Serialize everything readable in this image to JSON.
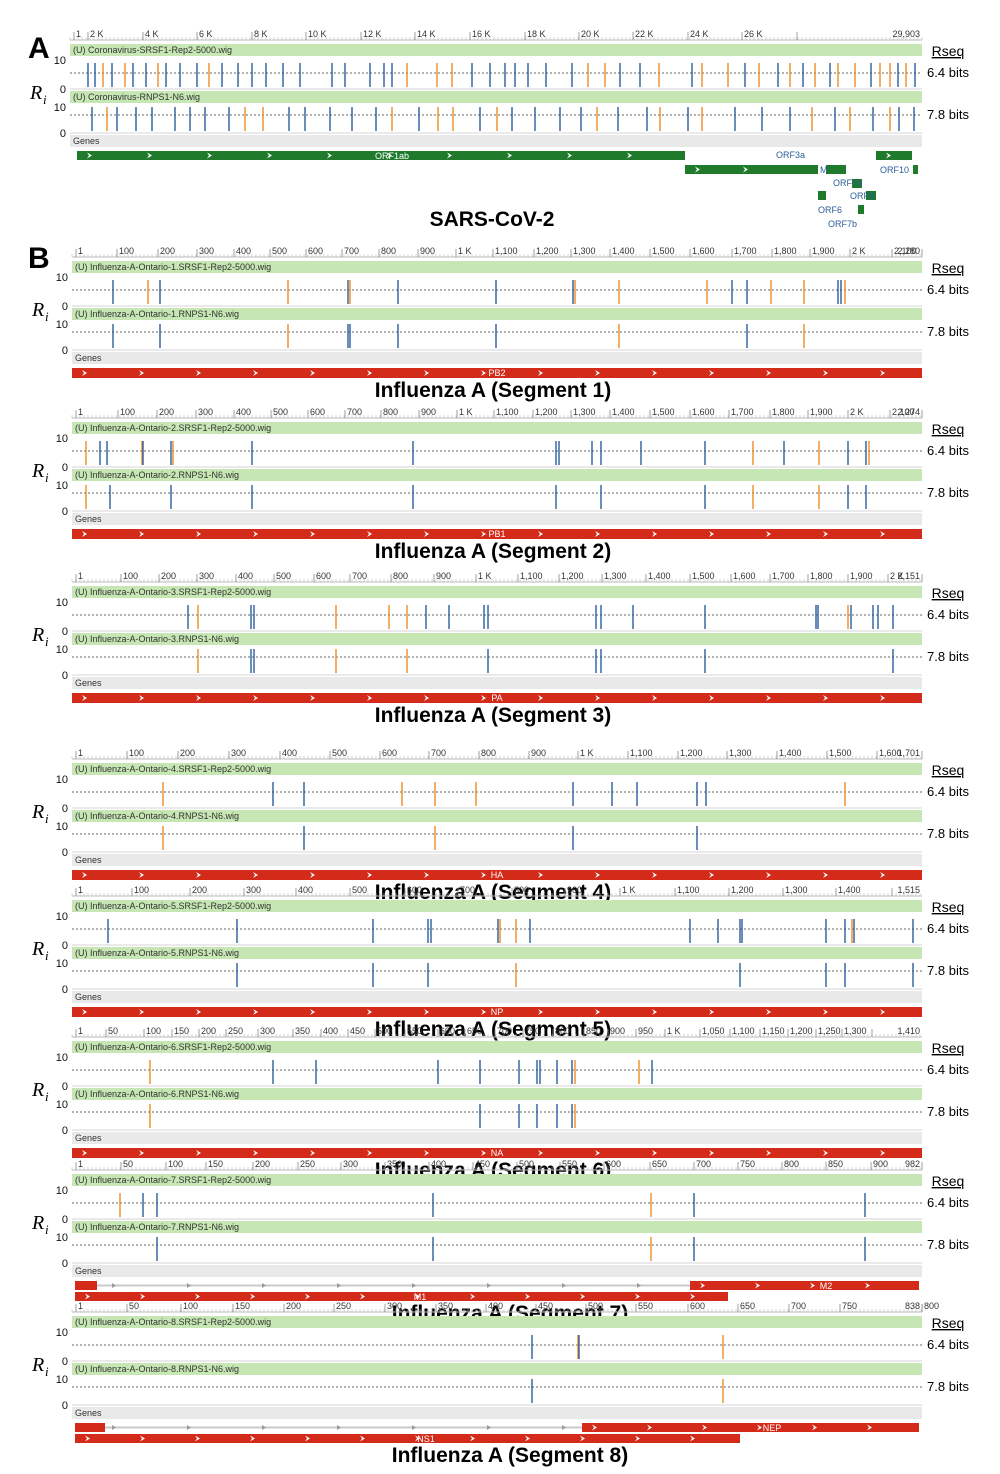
{
  "colors": {
    "track_bg": "#c6e6b3",
    "genes_bg": "#e9e9e9",
    "site_blue": "#2b5d9b",
    "site_orange": "#f08a24",
    "sars_gene": "#1f7a2c",
    "flu_gene": "#d42a1a"
  },
  "labels": {
    "ri_main": "R",
    "ri_sub": "i",
    "rseq_header": "Rseq",
    "rseq_srsf1": "6.4 bits",
    "rseq_rnps1": "7.8 bits",
    "axis_10": "10",
    "axis_0": "0",
    "genes_track": "Genes"
  },
  "panels": [
    {
      "letter": "A",
      "title": "SARS-CoV-2",
      "ticks": [
        "1",
        "2 K",
        "4 K",
        "6 K",
        "8 K",
        "10 K",
        "12 K",
        "14 K",
        "16 K",
        "18 K",
        "20 K",
        "22 K",
        "24 K",
        "26 K",
        "29,903"
      ],
      "track1": "(U) Coronavirus-SRSF1-Rep2-5000.wig",
      "track2": "(U) Coronavirus-RNPS1-N6.wig",
      "genes": [
        "ORF1ab",
        "ORF3a",
        "M",
        "ORF7a",
        "ORF8",
        "ORF6",
        "ORF7b",
        "ORF10"
      ]
    },
    {
      "letter": "B",
      "title": "Influenza A (Segment 1)",
      "ticks": [
        "1",
        "100",
        "200",
        "300",
        "400",
        "500",
        "600",
        "700",
        "800",
        "900",
        "1 K",
        "1,100",
        "1,200",
        "1,300",
        "1,400",
        "1,500",
        "1,600",
        "1,700",
        "1,800",
        "1,900",
        "2 K",
        "2,100",
        "2,280"
      ],
      "track1": "(U) Influenza-A-Ontario-1.SRSF1-Rep2-5000.wig",
      "track2": "(U) Influenza-A-Ontario-1.RNPS1-N6.wig",
      "genes": [
        "PB2"
      ]
    },
    {
      "letter": "",
      "title": "Influenza A (Segment 2)",
      "ticks": [
        "1",
        "100",
        "200",
        "300",
        "400",
        "500",
        "600",
        "700",
        "800",
        "900",
        "1 K",
        "1,100",
        "1,200",
        "1,300",
        "1,400",
        "1,500",
        "1,600",
        "1,700",
        "1,800",
        "1,900",
        "2 K",
        "2,100",
        "2,274"
      ],
      "track1": "(U) Influenza-A-Ontario-2.SRSF1-Rep2-5000.wig",
      "track2": "(U) Influenza-A-Ontario-2.RNPS1-N6.wig",
      "genes": [
        "PB1"
      ]
    },
    {
      "letter": "",
      "title": "Influenza A (Segment 3)",
      "ticks": [
        "1",
        "100",
        "200",
        "300",
        "400",
        "500",
        "600",
        "700",
        "800",
        "900",
        "1 K",
        "1,100",
        "1,200",
        "1,300",
        "1,400",
        "1,500",
        "1,600",
        "1,700",
        "1,800",
        "1,900",
        "2 K",
        "2,151"
      ],
      "track1": "(U) Influenza-A-Ontario-3.SRSF1-Rep2-5000.wig",
      "track2": "(U) Influenza-A-Ontario-3.RNPS1-N6.wig",
      "genes": [
        "PA"
      ]
    },
    {
      "letter": "",
      "title": "Influenza A (Segment 4)",
      "ticks": [
        "1",
        "100",
        "200",
        "300",
        "400",
        "500",
        "600",
        "700",
        "800",
        "900",
        "1 K",
        "1,100",
        "1,200",
        "1,300",
        "1,400",
        "1,500",
        "1,600",
        "1,701"
      ],
      "track1": "(U) Influenza-A-Ontario-4.SRSF1-Rep2-5000.wig",
      "track2": "(U) Influenza-A-Ontario-4.RNPS1-N6.wig",
      "genes": [
        "HA"
      ]
    },
    {
      "letter": "",
      "title": "Influenza A (Segment 5)",
      "ticks": [
        "1",
        "100",
        "200",
        "300",
        "400",
        "500",
        "600",
        "700",
        "800",
        "900",
        "1 K",
        "1,100",
        "1,200",
        "1,300",
        "1,400",
        "1,515"
      ],
      "track1": "(U) Influenza-A-Ontario-5.SRSF1-Rep2-5000.wig",
      "track2": "(U) Influenza-A-Ontario-5.RNPS1-N6.wig",
      "genes": [
        "NP"
      ]
    },
    {
      "letter": "",
      "title": "Influenza A (Segment 6)",
      "ticks": [
        "1",
        "50",
        "100",
        "150",
        "200",
        "250",
        "300",
        "350",
        "400",
        "450",
        "500",
        "550",
        "600",
        "650",
        "700",
        "750",
        "800",
        "850",
        "900",
        "950",
        "1 K",
        "1,050",
        "1,100",
        "1,150",
        "1,200",
        "1,250",
        "1,300",
        "1,410"
      ],
      "track1": "(U) Influenza-A-Ontario-6.SRSF1-Rep2-5000.wig",
      "track2": "(U) Influenza-A-Ontario-6.RNPS1-N6.wig",
      "genes": [
        "NA"
      ]
    },
    {
      "letter": "",
      "title": "Influenza A (Segment 7)",
      "ticks": [
        "1",
        "50",
        "100",
        "150",
        "200",
        "250",
        "300",
        "350",
        "400",
        "450",
        "500",
        "550",
        "600",
        "650",
        "700",
        "750",
        "800",
        "850",
        "900",
        "982"
      ],
      "track1": "(U) Influenza-A-Ontario-7.SRSF1-Rep2-5000.wig",
      "track2": "(U) Influenza-A-Ontario-7.RNPS1-N6.wig",
      "genes": [
        "M2",
        "M1"
      ]
    },
    {
      "letter": "",
      "title": "Influenza A (Segment 8)",
      "ticks": [
        "1",
        "50",
        "100",
        "150",
        "200",
        "250",
        "300",
        "350",
        "400",
        "450",
        "500",
        "550",
        "600",
        "650",
        "700",
        "750",
        "800",
        "838"
      ],
      "track1": "(U) Influenza-A-Ontario-8.SRSF1-Rep2-5000.wig",
      "track2": "(U) Influenza-A-Ontario-8.RNPS1-N6.wig",
      "genes": [
        "NEP",
        "NS1"
      ]
    }
  ]
}
